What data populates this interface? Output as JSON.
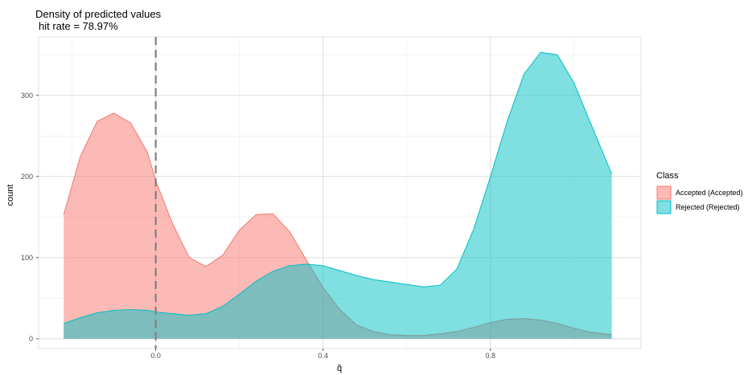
{
  "chart_data": {
    "type": "area",
    "title": "Density of predicted values",
    "subtitle": "hit rate = 78.97%",
    "xlabel": "q̃",
    "ylabel": "count",
    "xlim": [
      -0.28,
      1.16
    ],
    "ylim": [
      -12,
      372
    ],
    "x_ticks": [
      0.0,
      0.4,
      0.8
    ],
    "x_tick_labels": [
      "0.0",
      "0.4",
      "0.8"
    ],
    "y_ticks": [
      0,
      100,
      200,
      300
    ],
    "y_tick_labels": [
      "0",
      "100",
      "200",
      "300"
    ],
    "vline": {
      "x": 0.0,
      "style": "dashed",
      "color": "#808080"
    },
    "grid": true,
    "legend": {
      "title": "Class",
      "position": "right"
    },
    "series": [
      {
        "name": "Accepted (Accepted)",
        "color": "#F8766D",
        "x": [
          -0.22,
          -0.18,
          -0.14,
          -0.1,
          -0.06,
          -0.02,
          0.0,
          0.04,
          0.08,
          0.12,
          0.16,
          0.2,
          0.24,
          0.28,
          0.32,
          0.36,
          0.4,
          0.44,
          0.48,
          0.52,
          0.56,
          0.6,
          0.64,
          0.68,
          0.72,
          0.76,
          0.8,
          0.84,
          0.88,
          0.92,
          0.96,
          1.0,
          1.04,
          1.09
        ],
        "values": [
          153,
          225,
          268,
          278,
          266,
          230,
          195,
          142,
          100,
          89,
          103,
          134,
          153,
          154,
          132,
          97,
          63,
          36,
          17,
          9,
          5,
          4,
          4,
          6,
          9,
          14,
          20,
          24,
          25,
          23,
          19,
          13,
          8,
          5
        ]
      },
      {
        "name": "Rejected (Rejected)",
        "color": "#00BFC4",
        "x": [
          -0.22,
          -0.18,
          -0.14,
          -0.1,
          -0.06,
          -0.02,
          0.0,
          0.04,
          0.08,
          0.12,
          0.16,
          0.2,
          0.24,
          0.28,
          0.32,
          0.36,
          0.4,
          0.44,
          0.48,
          0.52,
          0.56,
          0.6,
          0.64,
          0.68,
          0.72,
          0.76,
          0.8,
          0.84,
          0.88,
          0.92,
          0.96,
          1.0,
          1.04,
          1.09
        ],
        "values": [
          19,
          26,
          32,
          35,
          36,
          35,
          33,
          31,
          29,
          31,
          40,
          55,
          71,
          83,
          90,
          92,
          90,
          84,
          78,
          73,
          70,
          67,
          64,
          66,
          86,
          135,
          200,
          268,
          326,
          353,
          350,
          315,
          265,
          203
        ]
      }
    ]
  }
}
